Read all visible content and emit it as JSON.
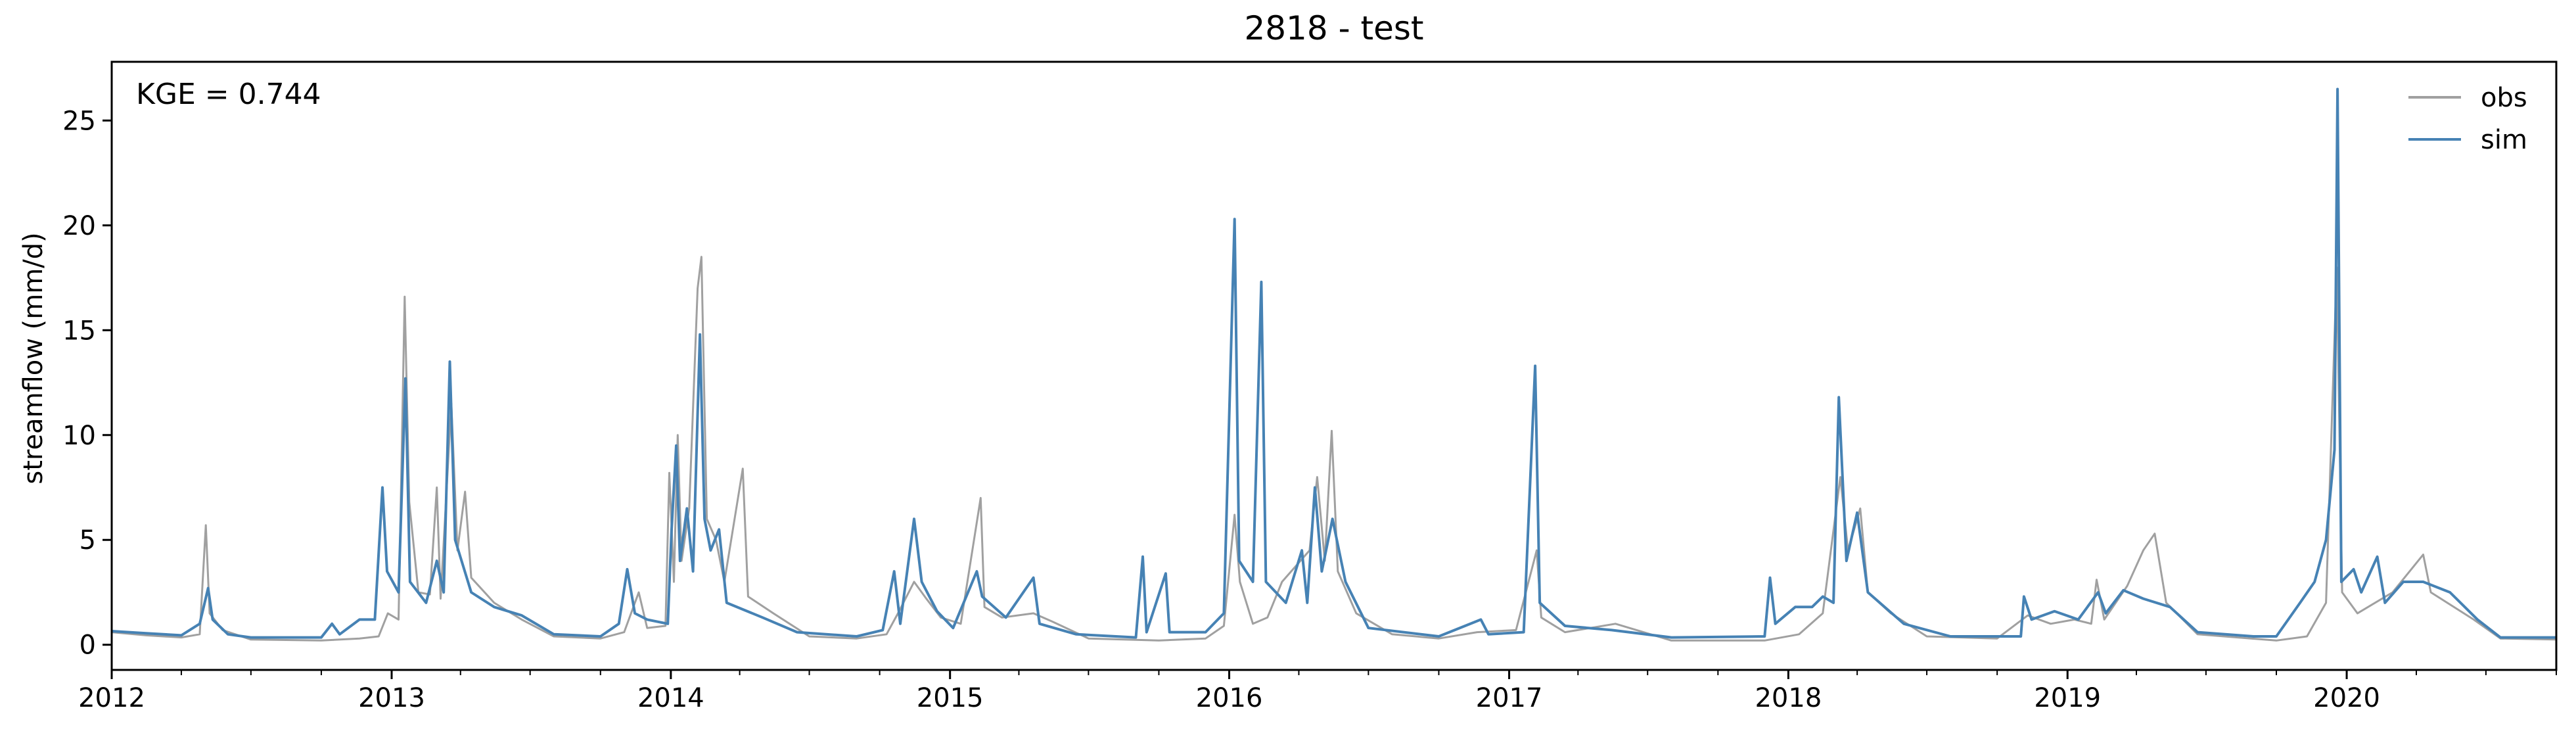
{
  "chart_data": {
    "type": "line",
    "title": "2818 - test",
    "xlabel": "",
    "ylabel": "streamflow (mm/d)",
    "annotation": "KGE = 0.744",
    "xlim": [
      "2012-01-01",
      "2020-10-01"
    ],
    "ylim": [
      -1.2,
      27.8
    ],
    "grid": false,
    "legend_position": "top-right",
    "x_ticks": [
      "2012",
      "2013",
      "2014",
      "2015",
      "2016",
      "2017",
      "2018",
      "2019",
      "2020"
    ],
    "y_ticks": [
      "0",
      "5",
      "10",
      "15",
      "20",
      "25"
    ],
    "series": [
      {
        "name": "obs",
        "color": "#a0a0a0",
        "points": [
          [
            "2012-01-01",
            0.6
          ],
          [
            "2012-02-15",
            0.45
          ],
          [
            "2012-04-01",
            0.35
          ],
          [
            "2012-04-25",
            0.5
          ],
          [
            "2012-05-03",
            5.7
          ],
          [
            "2012-05-08",
            1.5
          ],
          [
            "2012-05-25",
            0.7
          ],
          [
            "2012-07-01",
            0.25
          ],
          [
            "2012-10-01",
            0.2
          ],
          [
            "2012-11-20",
            0.3
          ],
          [
            "2012-12-15",
            0.4
          ],
          [
            "2012-12-27",
            1.5
          ],
          [
            "2013-01-10",
            1.2
          ],
          [
            "2013-01-18",
            16.6
          ],
          [
            "2013-01-24",
            6.8
          ],
          [
            "2013-02-05",
            2.5
          ],
          [
            "2013-02-20",
            2.4
          ],
          [
            "2013-03-01",
            7.5
          ],
          [
            "2013-03-06",
            2.2
          ],
          [
            "2013-03-20",
            11.5
          ],
          [
            "2013-03-28",
            4.5
          ],
          [
            "2013-04-07",
            7.3
          ],
          [
            "2013-04-15",
            3.2
          ],
          [
            "2013-05-15",
            2.0
          ],
          [
            "2013-06-20",
            1.2
          ],
          [
            "2013-08-01",
            0.4
          ],
          [
            "2013-10-01",
            0.3
          ],
          [
            "2013-11-01",
            0.6
          ],
          [
            "2013-11-20",
            2.5
          ],
          [
            "2013-12-01",
            0.8
          ],
          [
            "2013-12-25",
            0.9
          ],
          [
            "2013-12-30",
            8.2
          ],
          [
            "2014-01-05",
            3.0
          ],
          [
            "2014-01-10",
            10.0
          ],
          [
            "2014-01-15",
            4.0
          ],
          [
            "2014-01-25",
            6.5
          ],
          [
            "2014-02-05",
            17.0
          ],
          [
            "2014-02-10",
            18.5
          ],
          [
            "2014-02-17",
            6.0
          ],
          [
            "2014-03-01",
            5.0
          ],
          [
            "2014-03-12",
            3.0
          ],
          [
            "2014-04-05",
            8.4
          ],
          [
            "2014-04-12",
            2.3
          ],
          [
            "2014-05-15",
            1.5
          ],
          [
            "2014-07-01",
            0.4
          ],
          [
            "2014-09-01",
            0.3
          ],
          [
            "2014-10-10",
            0.5
          ],
          [
            "2014-10-25",
            1.5
          ],
          [
            "2014-11-15",
            3.0
          ],
          [
            "2014-12-01",
            2.2
          ],
          [
            "2014-12-20",
            1.3
          ],
          [
            "2015-01-15",
            1.0
          ],
          [
            "2015-02-10",
            7.0
          ],
          [
            "2015-02-15",
            1.8
          ],
          [
            "2015-03-10",
            1.3
          ],
          [
            "2015-04-20",
            1.5
          ],
          [
            "2015-05-15",
            1.1
          ],
          [
            "2015-07-01",
            0.3
          ],
          [
            "2015-10-01",
            0.2
          ],
          [
            "2015-12-01",
            0.3
          ],
          [
            "2015-12-25",
            0.9
          ],
          [
            "2016-01-08",
            6.2
          ],
          [
            "2016-01-15",
            3.0
          ],
          [
            "2016-02-01",
            1.0
          ],
          [
            "2016-02-20",
            1.3
          ],
          [
            "2016-03-10",
            3.0
          ],
          [
            "2016-04-15",
            4.5
          ],
          [
            "2016-04-25",
            8.0
          ],
          [
            "2016-05-05",
            4.0
          ],
          [
            "2016-05-14",
            10.2
          ],
          [
            "2016-05-22",
            3.5
          ],
          [
            "2016-06-15",
            1.5
          ],
          [
            "2016-08-01",
            0.5
          ],
          [
            "2016-10-01",
            0.3
          ],
          [
            "2016-11-20",
            0.6
          ],
          [
            "2017-01-10",
            0.7
          ],
          [
            "2017-02-06",
            4.5
          ],
          [
            "2017-02-12",
            1.3
          ],
          [
            "2017-03-15",
            0.6
          ],
          [
            "2017-05-20",
            1.0
          ],
          [
            "2017-08-01",
            0.2
          ],
          [
            "2017-12-01",
            0.2
          ],
          [
            "2018-01-15",
            0.5
          ],
          [
            "2018-02-15",
            1.5
          ],
          [
            "2018-03-10",
            8.0
          ],
          [
            "2018-03-20",
            4.5
          ],
          [
            "2018-04-05",
            6.5
          ],
          [
            "2018-04-15",
            2.5
          ],
          [
            "2018-05-15",
            1.5
          ],
          [
            "2018-07-01",
            0.4
          ],
          [
            "2018-10-01",
            0.3
          ],
          [
            "2018-11-10",
            1.4
          ],
          [
            "2018-12-10",
            1.0
          ],
          [
            "2019-01-10",
            1.2
          ],
          [
            "2019-02-01",
            1.0
          ],
          [
            "2019-02-08",
            3.1
          ],
          [
            "2019-02-18",
            1.2
          ],
          [
            "2019-03-20",
            2.8
          ],
          [
            "2019-04-10",
            4.5
          ],
          [
            "2019-04-25",
            5.3
          ],
          [
            "2019-05-10",
            2.0
          ],
          [
            "2019-06-20",
            0.5
          ],
          [
            "2019-10-01",
            0.2
          ],
          [
            "2019-11-10",
            0.4
          ],
          [
            "2019-12-05",
            2.0
          ],
          [
            "2019-12-19",
            18.0
          ],
          [
            "2019-12-26",
            2.5
          ],
          [
            "2020-01-15",
            1.5
          ],
          [
            "2020-03-01",
            2.5
          ],
          [
            "2020-04-10",
            4.3
          ],
          [
            "2020-04-20",
            2.5
          ],
          [
            "2020-06-15",
            1.2
          ],
          [
            "2020-07-20",
            0.3
          ],
          [
            "2020-10-01",
            0.25
          ]
        ]
      },
      {
        "name": "sim",
        "color": "#4682b4",
        "points": [
          [
            "2012-01-01",
            0.65
          ],
          [
            "2012-02-15",
            0.55
          ],
          [
            "2012-04-01",
            0.45
          ],
          [
            "2012-04-25",
            1.0
          ],
          [
            "2012-05-06",
            2.7
          ],
          [
            "2012-05-12",
            1.2
          ],
          [
            "2012-06-01",
            0.5
          ],
          [
            "2012-07-01",
            0.35
          ],
          [
            "2012-10-01",
            0.35
          ],
          [
            "2012-10-15",
            1.0
          ],
          [
            "2012-10-25",
            0.5
          ],
          [
            "2012-11-20",
            1.2
          ],
          [
            "2012-12-10",
            1.2
          ],
          [
            "2012-12-20",
            7.5
          ],
          [
            "2012-12-26",
            3.5
          ],
          [
            "2013-01-10",
            2.5
          ],
          [
            "2013-01-19",
            12.7
          ],
          [
            "2013-01-25",
            3.0
          ],
          [
            "2013-02-15",
            2.0
          ],
          [
            "2013-03-01",
            4.0
          ],
          [
            "2013-03-10",
            2.5
          ],
          [
            "2013-03-18",
            13.5
          ],
          [
            "2013-03-25",
            5.0
          ],
          [
            "2013-04-15",
            2.5
          ],
          [
            "2013-05-15",
            1.8
          ],
          [
            "2013-06-20",
            1.4
          ],
          [
            "2013-08-01",
            0.5
          ],
          [
            "2013-10-01",
            0.4
          ],
          [
            "2013-10-25",
            1.0
          ],
          [
            "2013-11-05",
            3.6
          ],
          [
            "2013-11-15",
            1.5
          ],
          [
            "2013-12-01",
            1.2
          ],
          [
            "2013-12-28",
            1.0
          ],
          [
            "2014-01-02",
            5.5
          ],
          [
            "2014-01-08",
            9.5
          ],
          [
            "2014-01-13",
            4.0
          ],
          [
            "2014-01-22",
            6.5
          ],
          [
            "2014-01-30",
            3.5
          ],
          [
            "2014-02-08",
            14.8
          ],
          [
            "2014-02-14",
            6.0
          ],
          [
            "2014-02-22",
            4.5
          ],
          [
            "2014-03-05",
            5.5
          ],
          [
            "2014-03-15",
            2.0
          ],
          [
            "2014-05-01",
            1.3
          ],
          [
            "2014-06-15",
            0.6
          ],
          [
            "2014-09-01",
            0.4
          ],
          [
            "2014-10-05",
            0.7
          ],
          [
            "2014-10-20",
            3.5
          ],
          [
            "2014-10-28",
            1.0
          ],
          [
            "2014-11-15",
            6.0
          ],
          [
            "2014-11-25",
            3.0
          ],
          [
            "2014-12-15",
            1.6
          ],
          [
            "2015-01-05",
            0.8
          ],
          [
            "2015-02-05",
            3.5
          ],
          [
            "2015-02-12",
            2.3
          ],
          [
            "2015-03-15",
            1.3
          ],
          [
            "2015-04-20",
            3.2
          ],
          [
            "2015-04-28",
            1.0
          ],
          [
            "2015-06-15",
            0.5
          ],
          [
            "2015-09-01",
            0.35
          ],
          [
            "2015-09-10",
            4.2
          ],
          [
            "2015-09-15",
            0.6
          ],
          [
            "2015-10-10",
            3.4
          ],
          [
            "2015-10-15",
            0.6
          ],
          [
            "2015-12-01",
            0.6
          ],
          [
            "2015-12-25",
            1.5
          ],
          [
            "2016-01-08",
            20.3
          ],
          [
            "2016-01-14",
            4.0
          ],
          [
            "2016-02-01",
            3.0
          ],
          [
            "2016-02-12",
            17.3
          ],
          [
            "2016-02-18",
            3.0
          ],
          [
            "2016-03-15",
            2.0
          ],
          [
            "2016-04-05",
            4.5
          ],
          [
            "2016-04-12",
            2.0
          ],
          [
            "2016-04-22",
            7.5
          ],
          [
            "2016-05-01",
            3.5
          ],
          [
            "2016-05-15",
            6.0
          ],
          [
            "2016-06-01",
            3.0
          ],
          [
            "2016-07-01",
            0.8
          ],
          [
            "2016-10-01",
            0.4
          ],
          [
            "2016-11-25",
            1.2
          ],
          [
            "2016-12-05",
            0.5
          ],
          [
            "2017-01-20",
            0.6
          ],
          [
            "2017-02-04",
            13.3
          ],
          [
            "2017-02-10",
            2.0
          ],
          [
            "2017-03-15",
            0.9
          ],
          [
            "2017-05-15",
            0.7
          ],
          [
            "2017-08-01",
            0.35
          ],
          [
            "2017-12-01",
            0.4
          ],
          [
            "2017-12-08",
            3.2
          ],
          [
            "2017-12-15",
            1.0
          ],
          [
            "2018-01-10",
            1.8
          ],
          [
            "2018-02-01",
            1.8
          ],
          [
            "2018-02-15",
            2.3
          ],
          [
            "2018-03-01",
            2.0
          ],
          [
            "2018-03-08",
            11.8
          ],
          [
            "2018-03-18",
            4.0
          ],
          [
            "2018-04-01",
            6.3
          ],
          [
            "2018-04-15",
            2.5
          ],
          [
            "2018-06-01",
            1.0
          ],
          [
            "2018-08-01",
            0.4
          ],
          [
            "2018-11-01",
            0.4
          ],
          [
            "2018-11-05",
            2.3
          ],
          [
            "2018-11-15",
            1.2
          ],
          [
            "2018-12-15",
            1.6
          ],
          [
            "2019-01-15",
            1.2
          ],
          [
            "2019-02-10",
            2.5
          ],
          [
            "2019-02-20",
            1.5
          ],
          [
            "2019-03-15",
            2.6
          ],
          [
            "2019-04-10",
            2.2
          ],
          [
            "2019-05-15",
            1.8
          ],
          [
            "2019-06-20",
            0.6
          ],
          [
            "2019-09-01",
            0.4
          ],
          [
            "2019-10-01",
            0.4
          ],
          [
            "2019-11-01",
            2.0
          ],
          [
            "2019-11-20",
            3.0
          ],
          [
            "2019-12-05",
            5.0
          ],
          [
            "2019-12-16",
            9.3
          ],
          [
            "2019-12-20",
            26.5
          ],
          [
            "2019-12-25",
            3.0
          ],
          [
            "2020-01-10",
            3.6
          ],
          [
            "2020-01-20",
            2.5
          ],
          [
            "2020-02-10",
            4.2
          ],
          [
            "2020-02-20",
            2.0
          ],
          [
            "2020-03-15",
            3.0
          ],
          [
            "2020-04-10",
            3.0
          ],
          [
            "2020-05-15",
            2.5
          ],
          [
            "2020-06-20",
            1.2
          ],
          [
            "2020-07-20",
            0.35
          ],
          [
            "2020-10-01",
            0.35
          ]
        ]
      }
    ]
  }
}
